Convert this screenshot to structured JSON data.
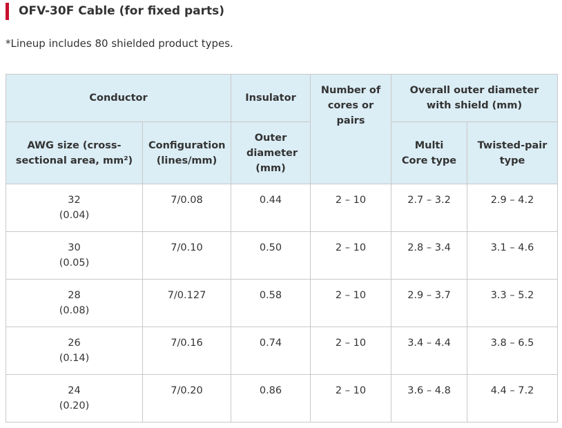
{
  "header": {
    "title": "OFV-30F Cable (for fixed parts)",
    "note": "*Lineup includes 80 shielded product types."
  },
  "table": {
    "group_headers": {
      "conductor": "Conductor",
      "insulator": "Insulator",
      "cores": "Number of cores or pairs",
      "overall": "Overall outer diameter with shield (mm)"
    },
    "sub_headers": {
      "awg": "AWG size (cross-sectional area, mm²)",
      "configuration": "Configuration (lines/mm)",
      "outer_diameter": "Outer diameter (mm)",
      "multi_core": "Multi Core type",
      "twisted_pair": "Twisted-pair type"
    },
    "rows": [
      {
        "awg": "32",
        "area": "(0.04)",
        "configuration": "7/0.08",
        "outer_diameter": "0.44",
        "cores": "2 – 10",
        "multi_core": "2.7 – 3.2",
        "twisted_pair": "2.9 – 4.2"
      },
      {
        "awg": "30",
        "area": "(0.05)",
        "configuration": "7/0.10",
        "outer_diameter": "0.50",
        "cores": "2 – 10",
        "multi_core": "2.8 – 3.4",
        "twisted_pair": "3.1 – 4.6"
      },
      {
        "awg": "28",
        "area": "(0.08)",
        "configuration": "7/0.127",
        "outer_diameter": "0.58",
        "cores": "2 – 10",
        "multi_core": "2.9 – 3.7",
        "twisted_pair": "3.3 – 5.2"
      },
      {
        "awg": "26",
        "area": "(0.14)",
        "configuration": "7/0.16",
        "outer_diameter": "0.74",
        "cores": "2 – 10",
        "multi_core": "3.4 – 4.4",
        "twisted_pair": "3.8 – 6.5"
      },
      {
        "awg": "24",
        "area": "(0.20)",
        "configuration": "7/0.20",
        "outer_diameter": "0.86",
        "cores": "2 – 10",
        "multi_core": "3.6 – 4.8",
        "twisted_pair": "4.4 – 7.2"
      }
    ]
  }
}
